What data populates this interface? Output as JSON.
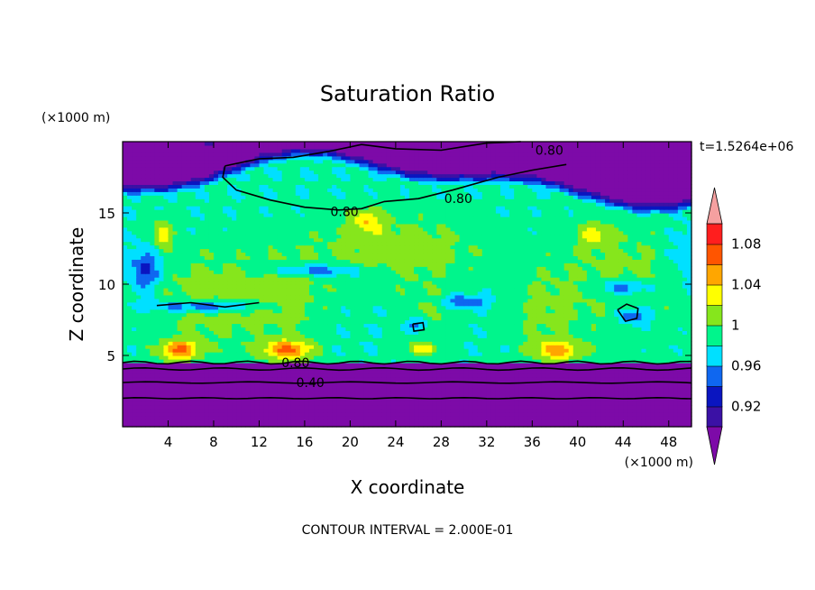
{
  "chart_data": {
    "type": "heatmap",
    "title": "Saturation Ratio",
    "xlabel": "X coordinate",
    "ylabel": "Z coordinate",
    "x_unit": "(×1000 m)",
    "y_unit": "(×1000 m)",
    "time_label": "t=1.5264e+06",
    "footer": "CONTOUR INTERVAL = 2.000E-01",
    "xlim": [
      0,
      50
    ],
    "ylim": [
      0,
      20
    ],
    "x_ticks": [
      4,
      8,
      12,
      16,
      20,
      24,
      28,
      32,
      36,
      40,
      44,
      48
    ],
    "y_ticks": [
      5,
      10,
      15
    ],
    "x_tick_labels": [
      "4",
      "8",
      "12",
      "16",
      "20",
      "24",
      "28",
      "32",
      "36",
      "40",
      "44",
      "48"
    ],
    "y_tick_labels": [
      "5",
      "10",
      "15"
    ],
    "colorbar": {
      "labels": [
        "1.08",
        "1.04",
        "1",
        "0.96",
        "0.92"
      ],
      "levels": [
        0.9,
        0.92,
        0.94,
        0.96,
        0.98,
        1.0,
        1.02,
        1.04,
        1.06,
        1.08,
        1.1
      ],
      "colors": [
        "#7d0aa8",
        "#3b11a5",
        "#0a15c0",
        "#0f67f0",
        "#00e0ff",
        "#00f58c",
        "#86e61c",
        "#ffff00",
        "#ffa600",
        "#ff5500",
        "#ff1e1e",
        "#f5a0a0"
      ],
      "extend": "both"
    },
    "contour_labels": [
      {
        "text": "0.80",
        "x": 37.5,
        "y": 19.4
      },
      {
        "text": "0.80",
        "x": 19.5,
        "y": 15.1
      },
      {
        "text": "0.80",
        "x": 29.5,
        "y": 16.0
      },
      {
        "text": "0.80",
        "x": 15.2,
        "y": 4.5
      },
      {
        "text": "0.40",
        "x": 16.5,
        "y": 3.1
      }
    ]
  }
}
